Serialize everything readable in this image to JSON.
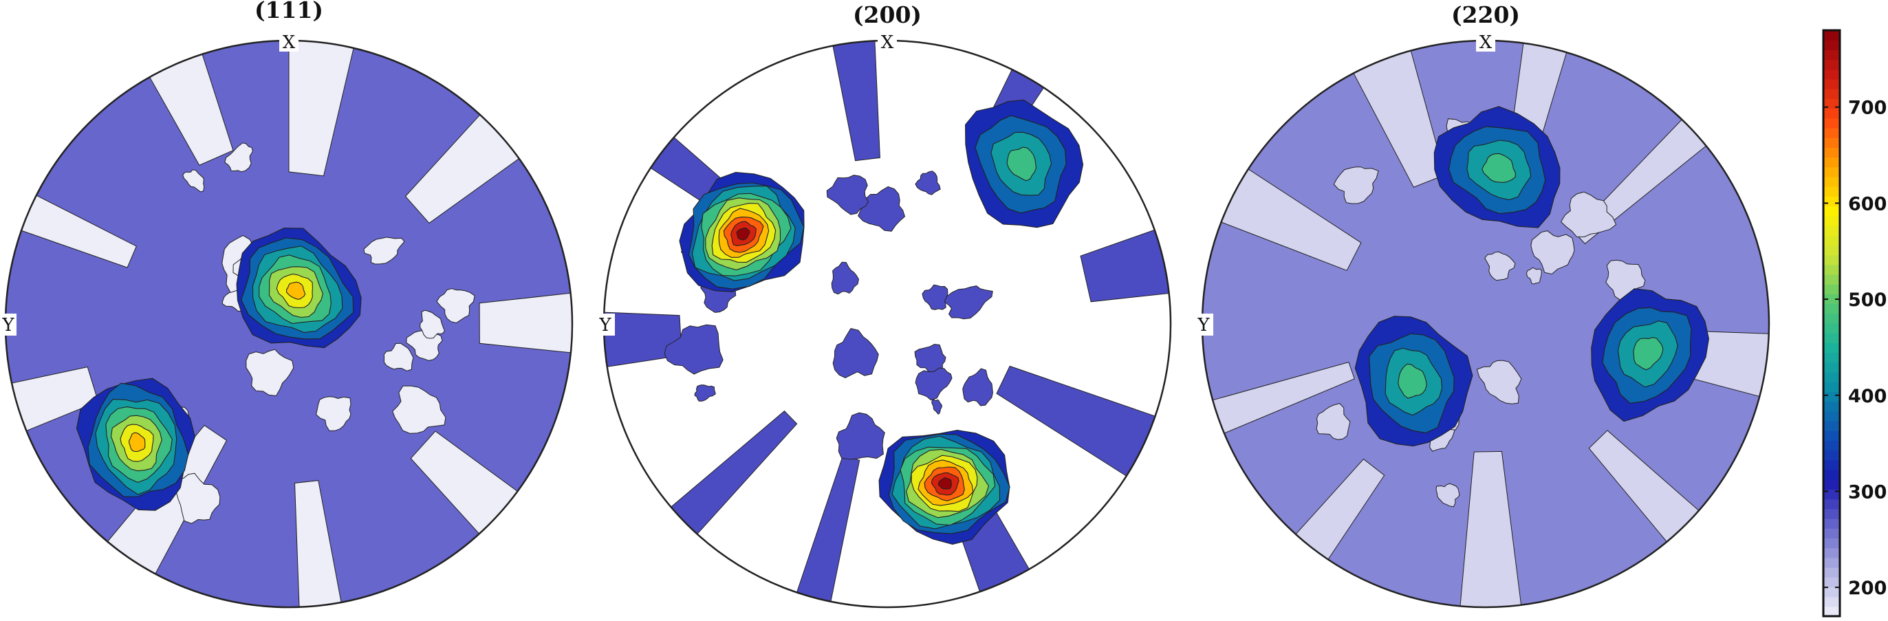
{
  "chart_data": {
    "type": "heatmap",
    "subtype": "pole-figure-contour",
    "colormap": "parula-like",
    "colorbar": {
      "vmin": 170,
      "vmax": 780,
      "ticks": [
        200,
        300,
        400,
        500,
        600,
        700
      ],
      "stops": [
        "#eeeef8",
        "#b2b2e2",
        "#6666cc",
        "#1a1ab0",
        "#0f50b4",
        "#0a8aa8",
        "#1cb49a",
        "#5ac86e",
        "#cce438",
        "#fff000",
        "#ffa500",
        "#ff4a10",
        "#cc1a10",
        "#8a0008"
      ]
    },
    "panels": [
      {
        "title": "(111)",
        "x_label": "X",
        "y_label": "Y",
        "base_level": 280,
        "min_level": 150,
        "poles": [
          {
            "angle_deg": 12,
            "radius_frac": 0.12,
            "peak": 600
          },
          {
            "angle_deg": 232,
            "radius_frac": 0.68,
            "peak": 600
          }
        ]
      },
      {
        "title": "(200)",
        "x_label": "X",
        "y_label": "Y",
        "base_level": 280,
        "min_level": 150,
        "poles": [
          {
            "angle_deg": 302,
            "radius_frac": 0.6,
            "peak": 780
          },
          {
            "angle_deg": 40,
            "radius_frac": 0.74,
            "peak": 470
          },
          {
            "angle_deg": 160,
            "radius_frac": 0.6,
            "peak": 780
          }
        ]
      },
      {
        "title": "(220)",
        "x_label": "X",
        "y_label": "Y",
        "base_level": 230,
        "min_level": 190,
        "poles": [
          {
            "angle_deg": 5,
            "radius_frac": 0.55,
            "peak": 450
          },
          {
            "angle_deg": 232,
            "radius_frac": 0.33,
            "peak": 450
          },
          {
            "angle_deg": 100,
            "radius_frac": 0.58,
            "peak": 450
          }
        ]
      }
    ]
  }
}
